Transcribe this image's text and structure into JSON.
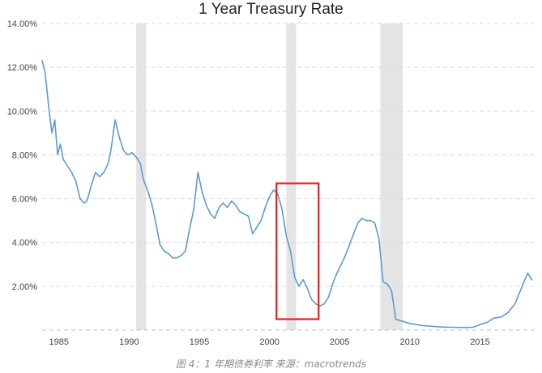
{
  "chart_data": {
    "type": "line",
    "title": "1 Year Treasury Rate",
    "caption": "图 4：1 年期债券利率 来源：macrotrends",
    "xlabel": "",
    "ylabel": "",
    "xlim": [
      1983.8,
      2018.9
    ],
    "ylim": [
      0,
      14
    ],
    "yticks": [
      2,
      4,
      6,
      8,
      10,
      12,
      14
    ],
    "ytick_labels": [
      "2.00%",
      "4.00%",
      "6.00%",
      "8.00%",
      "10.00%",
      "12.00%",
      "14.00%"
    ],
    "xticks": [
      1985,
      1990,
      1995,
      2000,
      2005,
      2010,
      2015
    ],
    "xtick_labels": [
      "1985",
      "1990",
      "1995",
      "2000",
      "2005",
      "2010",
      "2015"
    ],
    "grid": "horizontal dashed",
    "recessions": [
      [
        1990.5,
        1991.2
      ],
      [
        2001.2,
        2001.9
      ],
      [
        2007.9,
        2009.5
      ]
    ],
    "highlight_box": {
      "x": [
        2000.5,
        2003.5
      ],
      "y": [
        0.5,
        6.7
      ],
      "color": "#d62728"
    },
    "series": [
      {
        "color": "#5b9bd5",
        "x": [
          1983.8,
          1984.0,
          1984.3,
          1984.5,
          1984.7,
          1984.9,
          1985.1,
          1985.3,
          1985.6,
          1985.9,
          1986.2,
          1986.5,
          1986.8,
          1987.0,
          1987.3,
          1987.6,
          1987.9,
          1988.2,
          1988.5,
          1988.7,
          1989.0,
          1989.3,
          1989.6,
          1989.9,
          1990.2,
          1990.5,
          1990.8,
          1991.0,
          1991.3,
          1991.6,
          1991.9,
          1992.2,
          1992.5,
          1992.8,
          1993.1,
          1993.4,
          1993.7,
          1994.0,
          1994.3,
          1994.6,
          1994.9,
          1995.2,
          1995.5,
          1995.8,
          1996.1,
          1996.4,
          1996.7,
          1997.0,
          1997.3,
          1997.6,
          1997.9,
          1998.2,
          1998.5,
          1998.8,
          1999.1,
          1999.4,
          1999.7,
          2000.0,
          2000.3,
          2000.6,
          2000.9,
          2001.2,
          2001.5,
          2001.8,
          2002.1,
          2002.4,
          2002.7,
          2003.0,
          2003.3,
          2003.6,
          2003.9,
          2004.2,
          2004.5,
          2004.8,
          2005.1,
          2005.4,
          2005.7,
          2006.0,
          2006.3,
          2006.6,
          2006.9,
          2007.2,
          2007.5,
          2007.8,
          2008.1,
          2008.4,
          2008.7,
          2009.0,
          2009.5,
          2010.0,
          2011.0,
          2012.0,
          2013.0,
          2014.0,
          2014.5,
          2015.0,
          2015.5,
          2016.0,
          2016.5,
          2017.0,
          2017.5,
          2018.0,
          2018.4,
          2018.7
        ],
        "values": [
          12.3,
          11.8,
          10.0,
          9.0,
          9.6,
          8.0,
          8.5,
          7.8,
          7.5,
          7.2,
          6.8,
          6.0,
          5.8,
          5.9,
          6.6,
          7.2,
          7.0,
          7.2,
          7.6,
          8.2,
          9.6,
          8.8,
          8.2,
          8.0,
          8.1,
          7.9,
          7.6,
          6.9,
          6.4,
          5.8,
          4.9,
          3.9,
          3.6,
          3.5,
          3.3,
          3.3,
          3.4,
          3.6,
          4.6,
          5.5,
          7.2,
          6.3,
          5.7,
          5.3,
          5.1,
          5.6,
          5.8,
          5.6,
          5.9,
          5.7,
          5.4,
          5.3,
          5.2,
          4.4,
          4.7,
          5.0,
          5.6,
          6.1,
          6.4,
          6.2,
          5.5,
          4.3,
          3.6,
          2.4,
          2.0,
          2.3,
          1.9,
          1.4,
          1.2,
          1.1,
          1.2,
          1.5,
          2.1,
          2.6,
          3.0,
          3.4,
          3.9,
          4.4,
          4.9,
          5.1,
          5.0,
          5.0,
          4.9,
          4.2,
          2.2,
          2.1,
          1.8,
          0.5,
          0.4,
          0.3,
          0.2,
          0.15,
          0.13,
          0.12,
          0.13,
          0.25,
          0.35,
          0.55,
          0.6,
          0.8,
          1.2,
          2.0,
          2.6,
          2.3
        ]
      }
    ]
  }
}
